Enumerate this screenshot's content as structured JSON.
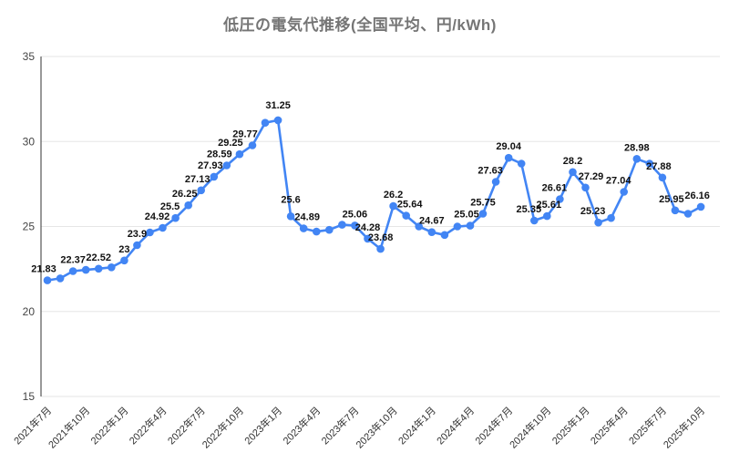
{
  "title": "低圧の電気代推移(全国平均、円/kWh)",
  "chart_data": {
    "type": "line",
    "title": "低圧の電気代推移(全国平均、円/kWh)",
    "ylabel": "",
    "xlabel": "",
    "ylim": [
      15,
      35
    ],
    "yticks": [
      35,
      30,
      25,
      20,
      15
    ],
    "grid": true,
    "legend": "none",
    "series_color": "#4285f4",
    "label_color": "#111111",
    "x_tick_labels": [
      "2021年7月",
      "2021年10月",
      "2022年1月",
      "2022年4月",
      "2022年7月",
      "2022年10月",
      "2023年1月",
      "2023年4月",
      "2023年7月",
      "2023年10月",
      "2024年1月",
      "2024年4月",
      "2024年7月",
      "2024年10月",
      "2025年1月",
      "2025年4月",
      "2025年7月",
      "2025年10月"
    ],
    "points": [
      {
        "m": "2021年7月",
        "v": 21.83,
        "l": "21.83",
        "dx": -4
      },
      {
        "m": "2021年8月",
        "v": 21.95,
        "l": ""
      },
      {
        "m": "2021年9月",
        "v": 22.37,
        "l": "22.37"
      },
      {
        "m": "2021年10月",
        "v": 22.45,
        "l": ""
      },
      {
        "m": "2021年11月",
        "v": 22.52,
        "l": "22.52"
      },
      {
        "m": "2021年12月",
        "v": 22.6,
        "l": ""
      },
      {
        "m": "2022年1月",
        "v": 23,
        "l": "23"
      },
      {
        "m": "2022年2月",
        "v": 23.9,
        "l": "23.9"
      },
      {
        "m": "2022年3月",
        "v": 24.65,
        "l": ""
      },
      {
        "m": "2022年4月",
        "v": 24.92,
        "l": "24.92",
        "dx": -6
      },
      {
        "m": "2022年5月",
        "v": 25.5,
        "l": "25.5",
        "dx": -6
      },
      {
        "m": "2022年6月",
        "v": 26.25,
        "l": "26.25",
        "dx": -4
      },
      {
        "m": "2022年7月",
        "v": 27.13,
        "l": "27.13",
        "dx": -4
      },
      {
        "m": "2022年8月",
        "v": 27.93,
        "l": "27.93",
        "dx": -4
      },
      {
        "m": "2022年9月",
        "v": 28.59,
        "l": "28.59",
        "dx": -8
      },
      {
        "m": "2022年10月",
        "v": 29.25,
        "l": "29.25",
        "dx": -10
      },
      {
        "m": "2022年11月",
        "v": 29.77,
        "l": "29.77",
        "dx": -8
      },
      {
        "m": "2022年12月",
        "v": 31.1,
        "l": ""
      },
      {
        "m": "2023年1月",
        "v": 31.25,
        "l": "31.25",
        "dy": -4
      },
      {
        "m": "2023年2月",
        "v": 25.6,
        "l": "25.6",
        "dy": -6
      },
      {
        "m": "2023年3月",
        "v": 24.89,
        "l": "24.89",
        "dx": 4
      },
      {
        "m": "2023年4月",
        "v": 24.7,
        "l": ""
      },
      {
        "m": "2023年5月",
        "v": 24.8,
        "l": ""
      },
      {
        "m": "2023年6月",
        "v": 25.1,
        "l": ""
      },
      {
        "m": "2023年7月",
        "v": 25.06,
        "l": "25.06"
      },
      {
        "m": "2023年8月",
        "v": 24.28,
        "l": "24.28"
      },
      {
        "m": "2023年9月",
        "v": 23.68,
        "l": "23.68"
      },
      {
        "m": "2023年10月",
        "v": 26.2,
        "l": "26.2"
      },
      {
        "m": "2023年11月",
        "v": 25.64,
        "l": "25.64",
        "dx": 4
      },
      {
        "m": "2023年12月",
        "v": 25.0,
        "l": ""
      },
      {
        "m": "2024年1月",
        "v": 24.67,
        "l": "24.67"
      },
      {
        "m": "2024年2月",
        "v": 24.5,
        "l": ""
      },
      {
        "m": "2024年3月",
        "v": 25.0,
        "l": ""
      },
      {
        "m": "2024年4月",
        "v": 25.05,
        "l": "25.05",
        "dx": -4
      },
      {
        "m": "2024年5月",
        "v": 25.75,
        "l": "25.75"
      },
      {
        "m": "2024年6月",
        "v": 27.63,
        "l": "27.63",
        "dx": -6
      },
      {
        "m": "2024年7月",
        "v": 29.04,
        "l": "29.04"
      },
      {
        "m": "2024年8月",
        "v": 28.7,
        "l": ""
      },
      {
        "m": "2024年9月",
        "v": 25.35,
        "l": "25.35",
        "dx": -6
      },
      {
        "m": "2024年10月",
        "v": 25.61,
        "l": "25.61",
        "dx": 2
      },
      {
        "m": "2024年11月",
        "v": 26.61,
        "l": "26.61",
        "dx": -6
      },
      {
        "m": "2024年12月",
        "v": 28.2,
        "l": "28.2"
      },
      {
        "m": "2025年1月",
        "v": 27.29,
        "l": "27.29",
        "dx": 6
      },
      {
        "m": "2025年2月",
        "v": 25.23,
        "l": "25.23",
        "dx": -6
      },
      {
        "m": "2025年3月",
        "v": 25.5,
        "l": ""
      },
      {
        "m": "2025年4月",
        "v": 27.04,
        "l": "27.04",
        "dx": -6
      },
      {
        "m": "2025年5月",
        "v": 28.98,
        "l": "28.98"
      },
      {
        "m": "2025年6月",
        "v": 28.7,
        "l": ""
      },
      {
        "m": "2025年7月",
        "v": 27.88,
        "l": "27.88",
        "dx": -4
      },
      {
        "m": "2025年8月",
        "v": 25.95,
        "l": "25.95",
        "dx": -4
      },
      {
        "m": "2025年9月",
        "v": 25.75,
        "l": ""
      },
      {
        "m": "2025年10月",
        "v": 26.16,
        "l": "26.16",
        "dx": -4
      }
    ]
  }
}
